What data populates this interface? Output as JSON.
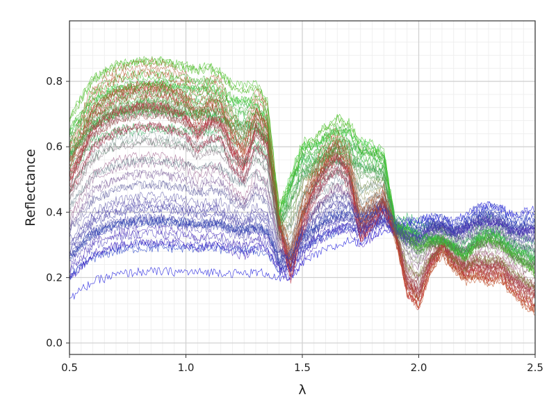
{
  "chart_data": {
    "type": "line",
    "title": "",
    "xlabel": "λ",
    "ylabel": "Reflectance",
    "xlim": [
      0.5,
      2.5
    ],
    "ylim": [
      -0.035,
      0.985
    ],
    "x_ticks": [
      0.5,
      1.0,
      1.5,
      2.0,
      2.5
    ],
    "x_tick_labels": [
      "0.5",
      "1.0",
      "1.5",
      "2.0",
      "2.5"
    ],
    "y_ticks": [
      0.0,
      0.2,
      0.4,
      0.6,
      0.8
    ],
    "y_tick_labels": [
      "0.0",
      "0.2",
      "0.4",
      "0.6",
      "0.8"
    ],
    "grid": true,
    "minor_grid": true,
    "legend": "none",
    "series_count": 80,
    "series_colors": {
      "green_endmember": "#22e622",
      "red_endmember": "#e61e1e",
      "blue_endmember": "#1e1ee6"
    },
    "endmembers": {
      "x": [
        0.5,
        0.6,
        0.7,
        0.8,
        0.9,
        1.0,
        1.05,
        1.1,
        1.15,
        1.2,
        1.25,
        1.3,
        1.35,
        1.4,
        1.45,
        1.5,
        1.55,
        1.6,
        1.65,
        1.7,
        1.75,
        1.8,
        1.85,
        1.9,
        1.95,
        2.0,
        2.05,
        2.1,
        2.15,
        2.2,
        2.25,
        2.3,
        2.35,
        2.4,
        2.45,
        2.5
      ],
      "green": [
        0.72,
        0.82,
        0.86,
        0.87,
        0.87,
        0.86,
        0.87,
        0.86,
        0.84,
        0.82,
        0.83,
        0.8,
        0.75,
        0.42,
        0.58,
        0.67,
        0.66,
        0.68,
        0.7,
        0.7,
        0.68,
        0.66,
        0.62,
        0.37,
        0.38,
        0.35,
        0.33,
        0.32,
        0.3,
        0.27,
        0.33,
        0.35,
        0.33,
        0.3,
        0.28,
        0.25
      ],
      "red": [
        0.56,
        0.76,
        0.82,
        0.84,
        0.84,
        0.8,
        0.72,
        0.78,
        0.78,
        0.65,
        0.58,
        0.76,
        0.7,
        0.4,
        0.17,
        0.35,
        0.5,
        0.58,
        0.63,
        0.55,
        0.3,
        0.35,
        0.42,
        0.33,
        0.1,
        0.05,
        0.2,
        0.28,
        0.22,
        0.18,
        0.18,
        0.15,
        0.17,
        0.12,
        0.08,
        0.06
      ],
      "blue": [
        0.12,
        0.17,
        0.19,
        0.2,
        0.2,
        0.2,
        0.2,
        0.2,
        0.2,
        0.2,
        0.2,
        0.2,
        0.2,
        0.19,
        0.2,
        0.24,
        0.26,
        0.28,
        0.29,
        0.31,
        0.31,
        0.33,
        0.35,
        0.36,
        0.38,
        0.39,
        0.4,
        0.39,
        0.38,
        0.41,
        0.43,
        0.44,
        0.43,
        0.41,
        0.42,
        0.43
      ]
    }
  }
}
